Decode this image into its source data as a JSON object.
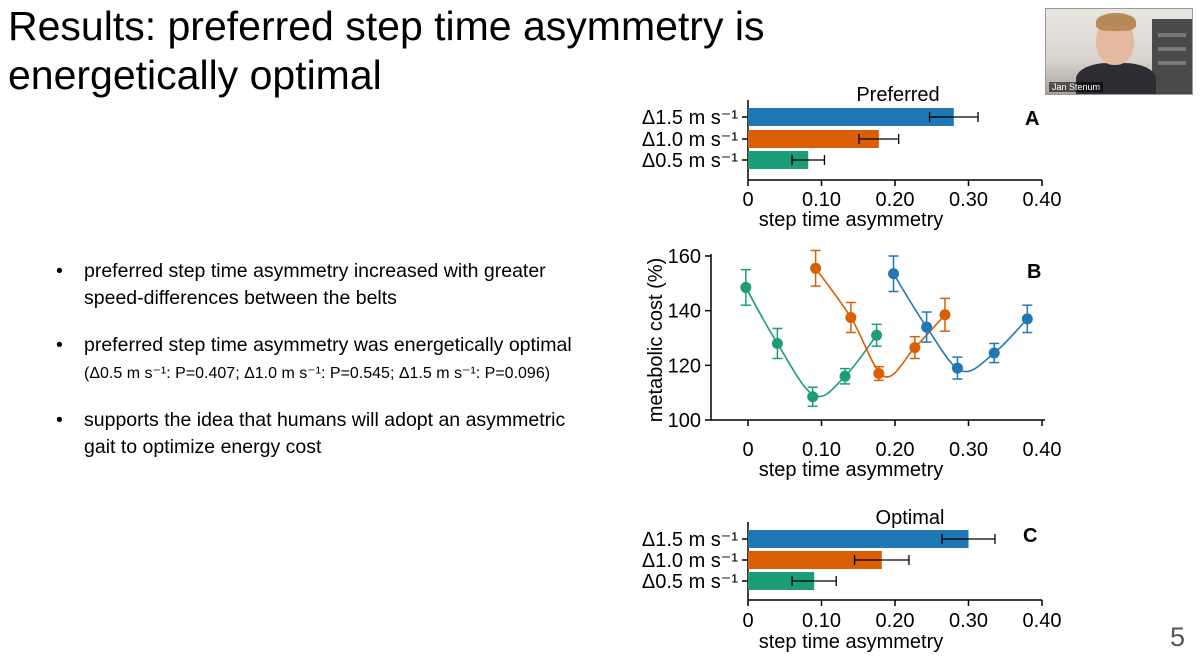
{
  "title": {
    "line1": "Results: preferred step time asymmetry is",
    "line2": "energetically optimal"
  },
  "bullets": {
    "b1": "preferred step time asymmetry increased with greater speed-differences between the belts",
    "b2_main": "preferred step time asymmetry was energetically optimal",
    "b2_stats": "(Δ0.5 m s⁻¹: P=0.407; Δ1.0 m s⁻¹: P=0.545; Δ1.5 m s⁻¹: P=0.096)",
    "b3": "supports the idea that humans will adopt an asymmetric gait to optimize energy cost",
    "bullet_char": "•"
  },
  "webcam": {
    "name": "Jan Stenum"
  },
  "page_number": "5",
  "colors": {
    "blue": "#1f77b4",
    "orange": "#d95f02",
    "green": "#1b9e77"
  },
  "chart_data": [
    {
      "id": "A",
      "type": "bar",
      "orientation": "horizontal",
      "title": "Preferred",
      "panel_label": "A",
      "xlabel": "step time asymmetry",
      "xlim": [
        0,
        0.4
      ],
      "xticks": [
        0,
        0.1,
        0.2,
        0.3,
        0.4
      ],
      "xtick_labels": [
        "0",
        "0.10",
        "0.20",
        "0.30",
        "0.40"
      ],
      "categories": [
        "Δ1.5 m s⁻¹",
        "Δ1.0 m s⁻¹",
        "Δ0.5 m s⁻¹"
      ],
      "values": [
        0.28,
        0.178,
        0.082
      ],
      "errors": [
        0.033,
        0.027,
        0.022
      ],
      "bar_colors": [
        "#1f77b4",
        "#d95f02",
        "#1b9e77"
      ]
    },
    {
      "id": "B",
      "type": "scatter",
      "panel_label": "B",
      "xlabel": "step time asymmetry",
      "ylabel": "metabolic cost (%)",
      "xlim": [
        0,
        0.4
      ],
      "ylim": [
        100,
        160
      ],
      "xticks": [
        0,
        0.1,
        0.2,
        0.3,
        0.4
      ],
      "xtick_labels": [
        "0",
        "0.10",
        "0.20",
        "0.30",
        "0.40"
      ],
      "yticks": [
        100,
        120,
        140,
        160
      ],
      "ytick_labels": [
        "100",
        "120",
        "140",
        "160"
      ],
      "series": [
        {
          "name": "Δ0.5 m s⁻¹",
          "color": "#1b9e77",
          "x": [
            -0.003,
            0.04,
            0.088,
            0.132,
            0.175
          ],
          "y": [
            148.5,
            128,
            108.5,
            116,
            131
          ],
          "err": [
            6.5,
            5.5,
            3.5,
            2.8,
            4
          ],
          "fit_min": [
            0.09,
            109
          ]
        },
        {
          "name": "Δ1.0 m s⁻¹",
          "color": "#d95f02",
          "x": [
            0.092,
            0.14,
            0.178,
            0.227,
            0.268
          ],
          "y": [
            155.5,
            137.5,
            117,
            126.5,
            138.5
          ],
          "err": [
            6.5,
            5.5,
            2.5,
            4,
            6
          ],
          "fit_min": [
            0.185,
            116
          ]
        },
        {
          "name": "Δ1.5 m s⁻¹",
          "color": "#1f77b4",
          "x": [
            0.198,
            0.243,
            0.285,
            0.335,
            0.38
          ],
          "y": [
            153.5,
            134,
            119,
            124.5,
            137
          ],
          "err": [
            6.5,
            5.5,
            4,
            3.5,
            5
          ],
          "fit_min": [
            0.29,
            118
          ]
        }
      ]
    },
    {
      "id": "C",
      "type": "bar",
      "orientation": "horizontal",
      "title": "Optimal",
      "panel_label": "C",
      "xlabel": "step time asymmetry",
      "xlim": [
        0,
        0.4
      ],
      "xticks": [
        0,
        0.1,
        0.2,
        0.3,
        0.4
      ],
      "xtick_labels": [
        "0",
        "0.10",
        "0.20",
        "0.30",
        "0.40"
      ],
      "categories": [
        "Δ1.5 m s⁻¹",
        "Δ1.0 m s⁻¹",
        "Δ0.5 m s⁻¹"
      ],
      "values": [
        0.3,
        0.182,
        0.09
      ],
      "errors": [
        0.036,
        0.037,
        0.03
      ],
      "bar_colors": [
        "#1f77b4",
        "#d95f02",
        "#1b9e77"
      ]
    }
  ]
}
